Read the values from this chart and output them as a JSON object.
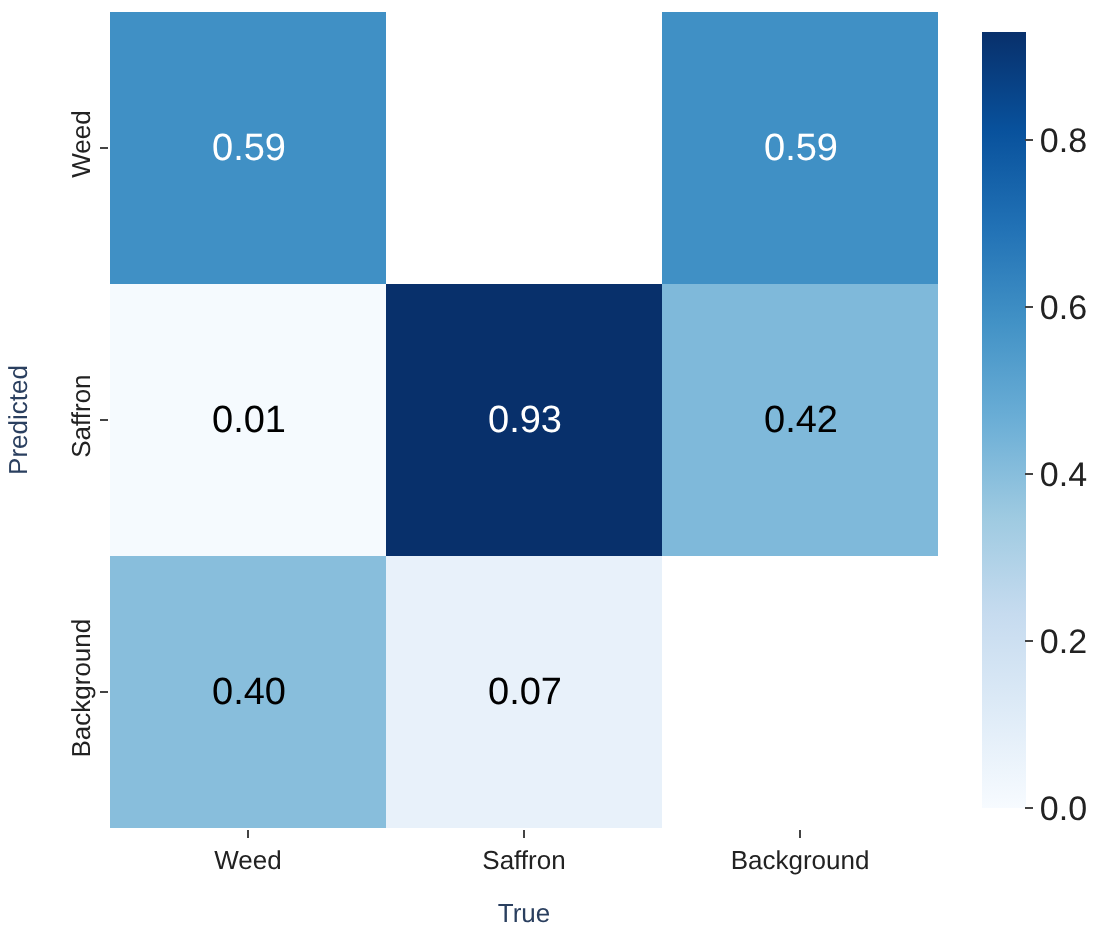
{
  "chart_data": {
    "type": "heatmap",
    "xlabel": "True",
    "ylabel": "Predicted",
    "categories": [
      "Weed",
      "Saffron",
      "Background"
    ],
    "y_categories": [
      "Weed",
      "Saffron",
      "Background"
    ],
    "cells": [
      [
        0.59,
        null,
        0.59
      ],
      [
        0.01,
        0.93,
        0.42
      ],
      [
        0.4,
        0.07,
        null
      ]
    ],
    "cell_labels": [
      [
        "0.59",
        null,
        "0.59"
      ],
      [
        "0.01",
        "0.93",
        "0.42"
      ],
      [
        "0.40",
        "0.07",
        null
      ]
    ],
    "clim": [
      0,
      0.93
    ],
    "cticks": [
      {
        "value": 0,
        "label": "0.0"
      },
      {
        "value": 0.2,
        "label": "0.2"
      },
      {
        "value": 0.4,
        "label": "0.4"
      },
      {
        "value": 0.6,
        "label": "0.6"
      },
      {
        "value": 0.8,
        "label": "0.8"
      }
    ]
  }
}
